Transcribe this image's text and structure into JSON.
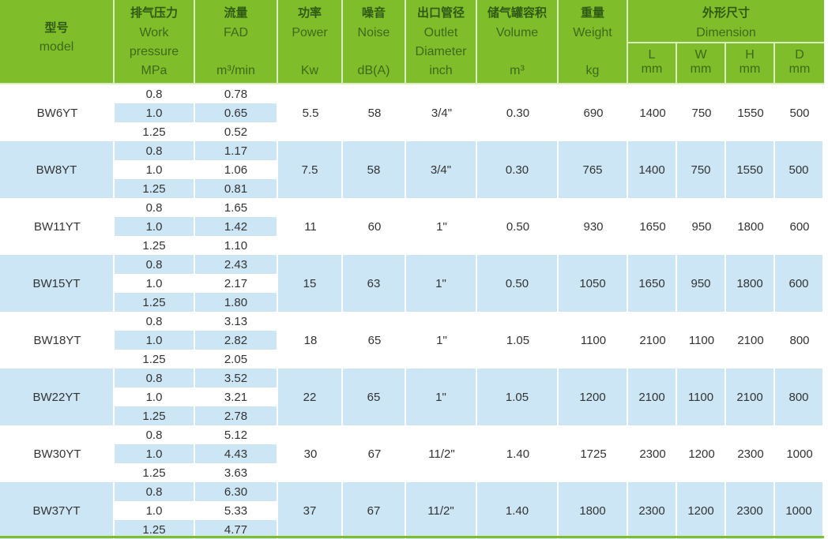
{
  "header": {
    "model": {
      "zh": "型号",
      "en": "model"
    },
    "pressure": {
      "zh": "排气压力",
      "en1": "Work",
      "en2": "pressure",
      "unit": "MPa"
    },
    "fad": {
      "zh": "流量",
      "en": "FAD",
      "unit": "m³/min"
    },
    "power": {
      "zh": "功率",
      "en": "Power",
      "unit": "Kw"
    },
    "noise": {
      "zh": "噪音",
      "en": "Noise",
      "unit": "dB(A)"
    },
    "outlet": {
      "zh": "出口管径",
      "en1": "Outlet",
      "en2": "Diameter",
      "unit": "inch"
    },
    "volume": {
      "zh": "储气罐容积",
      "en": "Volume",
      "unit": "m³"
    },
    "weight": {
      "zh": "重量",
      "en": "Weight",
      "unit": "kg"
    },
    "dimension": {
      "zh": "外形尺寸",
      "en": "Dimension"
    },
    "dims": [
      {
        "label": "L",
        "unit": "mm"
      },
      {
        "label": "W",
        "unit": "mm"
      },
      {
        "label": "H",
        "unit": "mm"
      },
      {
        "label": "D",
        "unit": "mm"
      }
    ]
  },
  "colors": {
    "header_green": "#80bd2a",
    "row_blue": "#cce6f6"
  },
  "rows": [
    {
      "model": "BW6YT",
      "pressure": [
        "0.8",
        "1.0",
        "1.25"
      ],
      "fad": [
        "0.78",
        "0.65",
        "0.52"
      ],
      "power": "5.5",
      "noise": "58",
      "outlet": "3/4\"",
      "volume": "0.30",
      "weight": "690",
      "L": "1400",
      "W": "750",
      "H": "1550",
      "D": "500"
    },
    {
      "model": "BW8YT",
      "pressure": [
        "0.8",
        "1.0",
        "1.25"
      ],
      "fad": [
        "1.17",
        "1.06",
        "0.81"
      ],
      "power": "7.5",
      "noise": "58",
      "outlet": "3/4\"",
      "volume": "0.30",
      "weight": "765",
      "L": "1400",
      "W": "750",
      "H": "1550",
      "D": "500"
    },
    {
      "model": "BW11YT",
      "pressure": [
        "0.8",
        "1.0",
        "1.25"
      ],
      "fad": [
        "1.65",
        "1.42",
        "1.10"
      ],
      "power": "11",
      "noise": "60",
      "outlet": "1\"",
      "volume": "0.50",
      "weight": "930",
      "L": "1650",
      "W": "950",
      "H": "1800",
      "D": "600"
    },
    {
      "model": "BW15YT",
      "pressure": [
        "0.8",
        "1.0",
        "1.25"
      ],
      "fad": [
        "2.43",
        "2.17",
        "1.80"
      ],
      "power": "15",
      "noise": "63",
      "outlet": "1\"",
      "volume": "0.50",
      "weight": "1050",
      "L": "1650",
      "W": "950",
      "H": "1800",
      "D": "600"
    },
    {
      "model": "BW18YT",
      "pressure": [
        "0.8",
        "1.0",
        "1.25"
      ],
      "fad": [
        "3.13",
        "2.82",
        "2.05"
      ],
      "power": "18",
      "noise": "65",
      "outlet": "1\"",
      "volume": "1.05",
      "weight": "1100",
      "L": "2100",
      "W": "1100",
      "H": "2100",
      "D": "800"
    },
    {
      "model": "BW22YT",
      "pressure": [
        "0.8",
        "1.0",
        "1.25"
      ],
      "fad": [
        "3.52",
        "3.21",
        "2.78"
      ],
      "power": "22",
      "noise": "65",
      "outlet": "1\"",
      "volume": "1.05",
      "weight": "1200",
      "L": "2100",
      "W": "1100",
      "H": "2100",
      "D": "800"
    },
    {
      "model": "BW30YT",
      "pressure": [
        "0.8",
        "1.0",
        "1.25"
      ],
      "fad": [
        "5.12",
        "4.43",
        "3.63"
      ],
      "power": "30",
      "noise": "67",
      "outlet": "11/2\"",
      "volume": "1.40",
      "weight": "1725",
      "L": "2300",
      "W": "1200",
      "H": "2300",
      "D": "1000"
    },
    {
      "model": "BW37YT",
      "pressure": [
        "0.8",
        "1.0",
        "1.25"
      ],
      "fad": [
        "6.30",
        "5.33",
        "4.77"
      ],
      "power": "37",
      "noise": "67",
      "outlet": "11/2\"",
      "volume": "1.40",
      "weight": "1800",
      "L": "2300",
      "W": "1200",
      "H": "2300",
      "D": "1000"
    }
  ]
}
